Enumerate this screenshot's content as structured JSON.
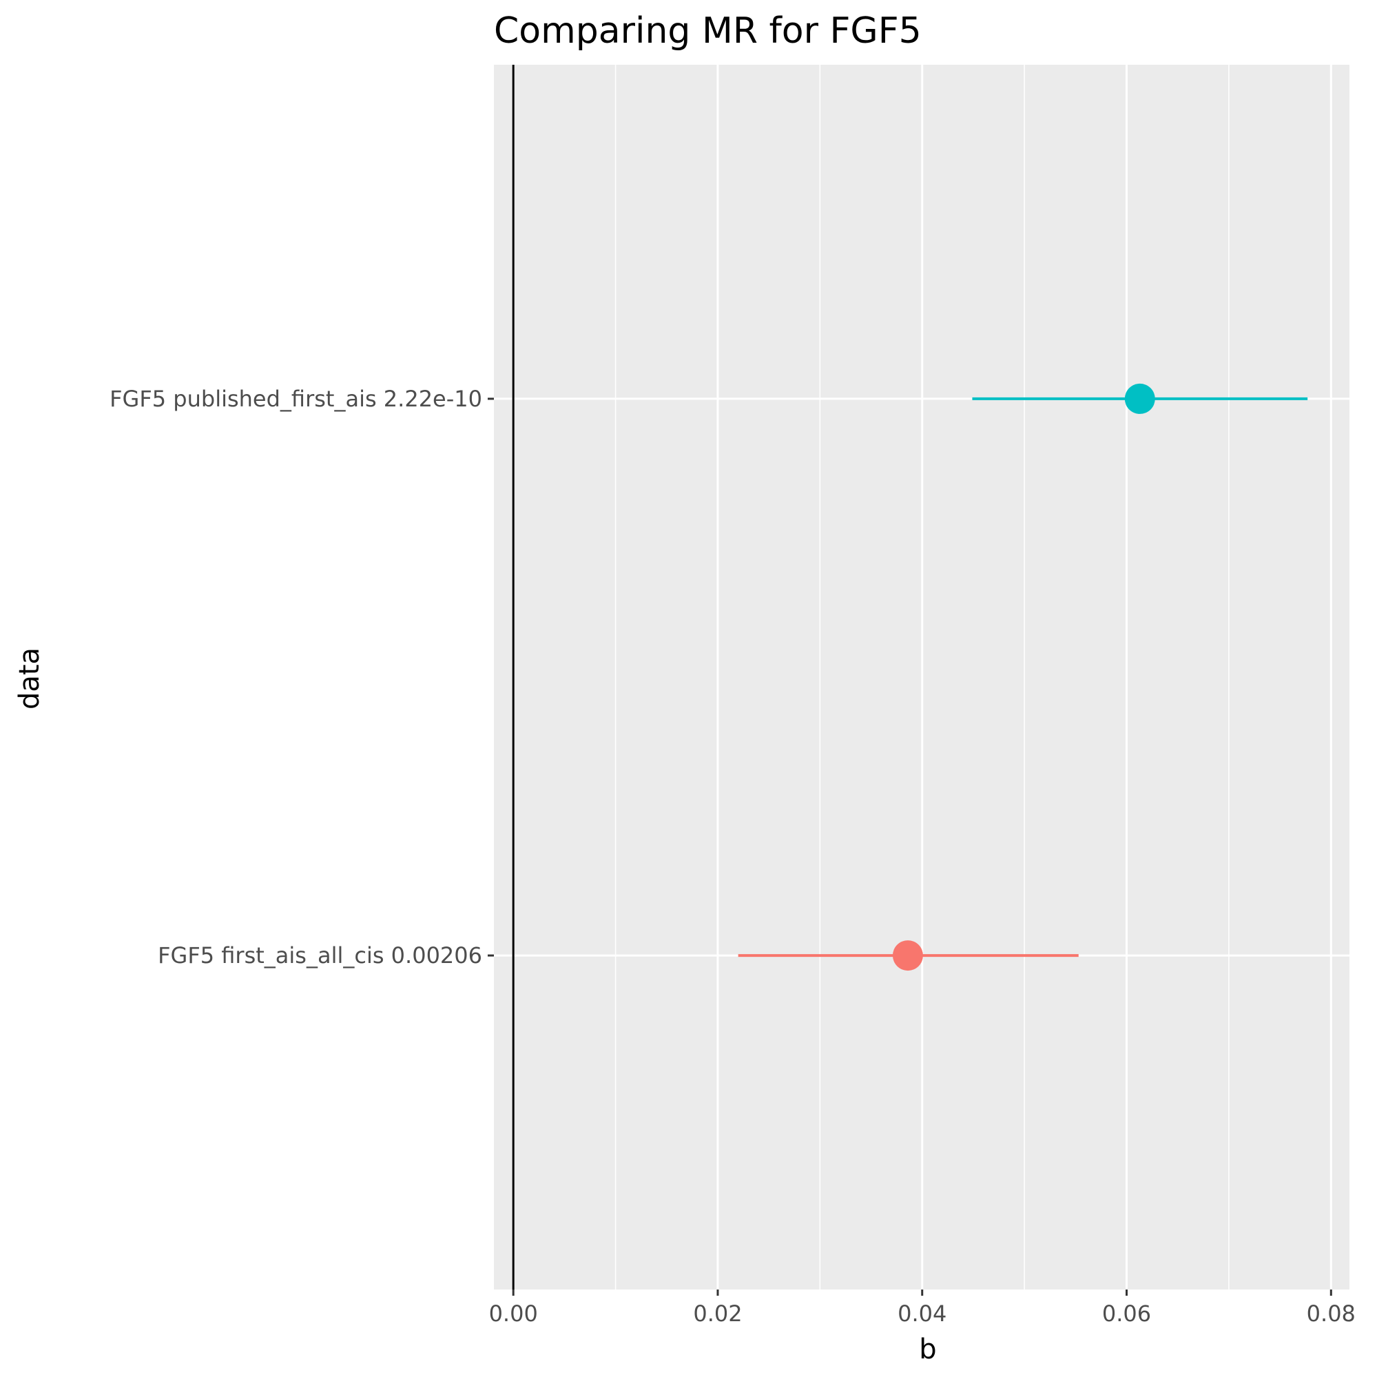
{
  "chart_data": {
    "type": "forest",
    "title": "Comparing MR for FGF5",
    "xlabel": "b",
    "ylabel": "data",
    "xlim": [
      -0.0019,
      0.0818
    ],
    "x_ticks": [
      0,
      0.02,
      0.04,
      0.06,
      0.08
    ],
    "x_tick_labels": [
      "0.00",
      "0.02",
      "0.04",
      "0.06",
      "0.08"
    ],
    "x_minor": [
      0.01,
      0.03,
      0.05,
      0.07
    ],
    "reference_line": 0,
    "grid": true,
    "legend": "none",
    "categories": [
      "FGF5 published_first_ais 2.22e-10",
      "FGF5 first_ais_all_cis 0.00206"
    ],
    "points": [
      {
        "label": "FGF5 published_first_ais 2.22e-10",
        "b": 0.0613,
        "lo": 0.0449,
        "hi": 0.0777,
        "color": "#00BFC4"
      },
      {
        "label": "FGF5 first_ais_all_cis 0.00206",
        "b": 0.0386,
        "lo": 0.022,
        "hi": 0.0553,
        "color": "#F8766D"
      }
    ]
  }
}
